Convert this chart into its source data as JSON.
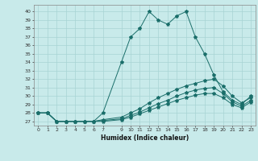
{
  "title": "",
  "xlabel": "Humidex (Indice chaleur)",
  "background_color": "#c8eaea",
  "grid_color": "#a8d4d4",
  "line_color": "#1a6e6a",
  "ylim": [
    26.5,
    40.8
  ],
  "xlim": [
    -0.5,
    23.5
  ],
  "yticks": [
    27,
    28,
    29,
    30,
    31,
    32,
    33,
    34,
    35,
    36,
    37,
    38,
    39,
    40
  ],
  "xticks": [
    0,
    1,
    2,
    3,
    4,
    5,
    6,
    7,
    9,
    10,
    11,
    12,
    13,
    14,
    15,
    16,
    17,
    18,
    19,
    20,
    21,
    22,
    23
  ],
  "series": [
    {
      "x": [
        0,
        1,
        2,
        3,
        4,
        5,
        6,
        7,
        9,
        10,
        11,
        12,
        13,
        14,
        15,
        16,
        17,
        18,
        19,
        20,
        21,
        22,
        23
      ],
      "y": [
        28,
        28,
        27,
        27,
        27,
        27,
        27,
        28,
        34,
        37,
        38,
        40,
        39,
        38.5,
        39.5,
        40,
        37,
        35,
        32.5,
        30.5,
        29.5,
        29,
        30
      ]
    },
    {
      "x": [
        0,
        1,
        2,
        3,
        4,
        5,
        6,
        7,
        9,
        10,
        11,
        12,
        13,
        14,
        15,
        16,
        17,
        18,
        19,
        20,
        21,
        22,
        23
      ],
      "y": [
        28,
        28,
        27,
        27,
        27,
        27,
        27,
        27.2,
        27.5,
        28.0,
        28.5,
        29.2,
        29.8,
        30.3,
        30.8,
        31.2,
        31.5,
        31.8,
        32.0,
        31.2,
        30.0,
        29.2,
        29.8
      ]
    },
    {
      "x": [
        0,
        1,
        2,
        3,
        4,
        5,
        6,
        7,
        9,
        10,
        11,
        12,
        13,
        14,
        15,
        16,
        17,
        18,
        19,
        20,
        21,
        22,
        23
      ],
      "y": [
        28,
        28,
        27,
        27,
        27,
        27,
        27,
        27.1,
        27.3,
        27.7,
        28.1,
        28.6,
        29.1,
        29.5,
        30.0,
        30.4,
        30.7,
        30.9,
        31.0,
        30.3,
        29.3,
        28.8,
        29.5
      ]
    },
    {
      "x": [
        0,
        1,
        2,
        3,
        4,
        5,
        6,
        7,
        9,
        10,
        11,
        12,
        13,
        14,
        15,
        16,
        17,
        18,
        19,
        20,
        21,
        22,
        23
      ],
      "y": [
        28,
        28,
        27,
        27,
        27,
        27,
        27,
        27.0,
        27.2,
        27.5,
        27.9,
        28.3,
        28.7,
        29.1,
        29.5,
        29.8,
        30.1,
        30.3,
        30.3,
        29.8,
        29.0,
        28.6,
        29.3
      ]
    }
  ]
}
